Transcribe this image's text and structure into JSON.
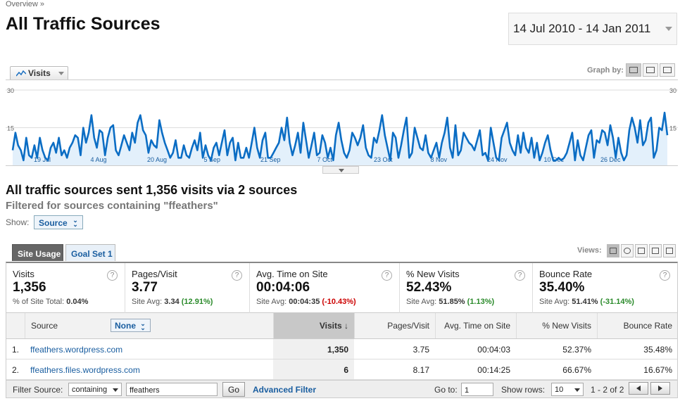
{
  "breadcrumb": "Overview »",
  "page_title": "All Traffic Sources",
  "date_range": "14 Jul 2010 - 14 Jan 2011",
  "graph": {
    "metric_label": "Visits",
    "graph_by_label": "Graph by:"
  },
  "chart_data": {
    "type": "area",
    "series": [
      {
        "name": "Visits",
        "values": [
          6,
          13,
          8,
          6,
          2,
          11,
          4,
          3,
          8,
          3,
          11,
          6,
          3,
          2,
          7,
          9,
          5,
          11,
          4,
          6,
          3,
          7,
          9,
          12,
          11,
          4,
          15,
          9,
          13,
          20,
          11,
          7,
          14,
          13,
          4,
          11,
          15,
          16,
          6,
          4,
          8,
          12,
          9,
          6,
          13,
          9,
          17,
          20,
          14,
          12,
          5,
          10,
          8,
          7,
          18,
          13,
          9,
          6,
          3,
          5,
          10,
          3,
          3,
          8,
          4,
          3,
          7,
          10,
          6,
          13,
          3,
          8,
          4,
          2,
          7,
          9,
          4,
          9,
          14,
          4,
          9,
          11,
          2,
          9,
          3,
          3,
          7,
          3,
          9,
          15,
          7,
          3,
          10,
          13,
          3,
          3,
          5,
          7,
          9,
          15,
          10,
          19,
          9,
          4,
          8,
          13,
          5,
          17,
          10,
          3,
          8,
          13,
          4,
          5,
          12,
          9,
          3,
          7,
          2,
          12,
          17,
          10,
          5,
          3,
          6,
          13,
          11,
          8,
          11,
          16,
          7,
          4,
          3,
          11,
          9,
          14,
          20,
          12,
          7,
          2,
          13,
          11,
          3,
          8,
          14,
          19,
          3,
          5,
          15,
          11,
          7,
          6,
          12,
          5,
          3,
          6,
          9,
          3,
          9,
          13,
          19,
          7,
          3,
          16,
          4,
          6,
          13,
          11,
          9,
          8,
          6,
          10,
          14,
          4,
          5,
          2,
          15,
          9,
          3,
          2,
          11,
          14,
          17,
          9,
          6,
          4,
          12,
          5,
          13,
          7,
          5,
          11,
          3,
          9,
          2,
          5,
          9,
          12,
          6,
          2,
          2,
          3,
          2,
          3,
          5,
          9,
          13,
          2,
          10,
          4,
          2,
          7,
          12,
          14,
          3,
          10,
          9,
          14,
          13,
          8,
          16,
          11,
          3,
          11,
          5,
          2,
          4,
          14,
          19,
          15,
          9,
          18,
          8,
          10,
          17,
          19,
          3,
          6,
          15,
          14,
          21,
          12
        ]
      }
    ],
    "x_tick_labels": [
      "19 Jul",
      "4 Aug",
      "20 Aug",
      "5 Sep",
      "21 Sep",
      "7 Oct",
      "23 Oct",
      "8 Nov",
      "24 Nov",
      "10 Dec",
      "26 Dec"
    ],
    "y_tick_labels": [
      "30",
      "15"
    ],
    "ylim": [
      0,
      30
    ]
  },
  "summary": "All traffic sources sent 1,356 visits via 2 sources",
  "filtered": "Filtered for sources containing \"ffeathers\"",
  "show": {
    "label": "Show:",
    "value": "Source"
  },
  "tabs": [
    {
      "label": "Site Usage"
    },
    {
      "label": "Goal Set 1"
    }
  ],
  "views_label": "Views:",
  "scorecards": [
    {
      "label": "Visits",
      "value": "1,356",
      "sub_prefix": "% of Site Total: ",
      "sub_value": "0.04%",
      "delta": ""
    },
    {
      "label": "Pages/Visit",
      "value": "3.77",
      "sub_prefix": "Site Avg: ",
      "sub_value": "3.34",
      "delta": "(12.91%)"
    },
    {
      "label": "Avg. Time on Site",
      "value": "00:04:06",
      "sub_prefix": "Site Avg: ",
      "sub_value": "00:04:35",
      "delta": "(-10.43%)"
    },
    {
      "label": "% New Visits",
      "value": "52.43%",
      "sub_prefix": "Site Avg: ",
      "sub_value": "51.85%",
      "delta": "(1.13%)"
    },
    {
      "label": "Bounce Rate",
      "value": "35.40%",
      "sub_prefix": "Site Avg: ",
      "sub_value": "51.41%",
      "delta": "(-31.14%)"
    }
  ],
  "table": {
    "columns": {
      "source": "Source",
      "none_select": "None",
      "visits": "Visits",
      "pages_visit": "Pages/Visit",
      "avg_time": "Avg. Time on Site",
      "new_visits": "% New Visits",
      "bounce": "Bounce Rate"
    },
    "rows": [
      {
        "index": "1.",
        "source": "ffeathers.wordpress.com",
        "visits": "1,350",
        "pages_visit": "3.75",
        "avg_time": "00:04:03",
        "new_visits": "52.37%",
        "bounce": "35.48%"
      },
      {
        "index": "2.",
        "source": "ffeathers.files.wordpress.com",
        "visits": "6",
        "pages_visit": "8.17",
        "avg_time": "00:14:25",
        "new_visits": "66.67%",
        "bounce": "16.67%"
      }
    ]
  },
  "footer": {
    "filter_label": "Filter Source:",
    "filter_mode": "containing",
    "filter_value": "ffeathers",
    "go_label": "Go",
    "advanced_filter": "Advanced Filter",
    "goto_label": "Go to:",
    "goto_value": "1",
    "show_rows_label": "Show rows:",
    "show_rows_value": "10",
    "range": "1 - 2 of 2"
  }
}
